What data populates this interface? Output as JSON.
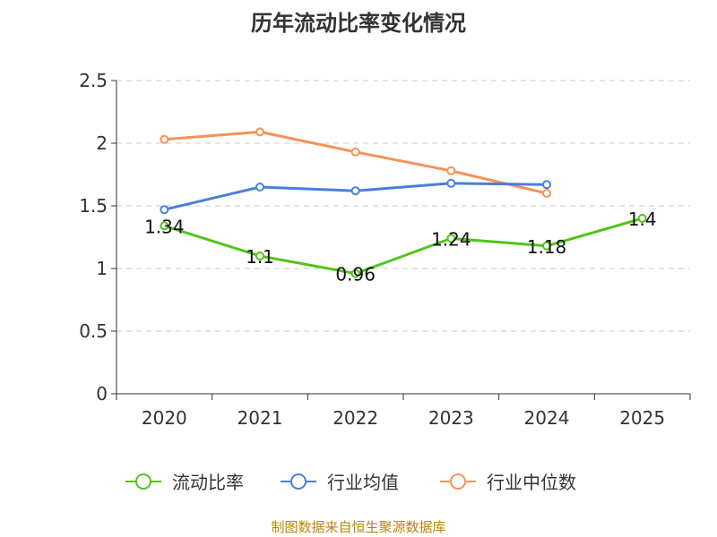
{
  "title": "历年流动比率变化情况",
  "source": "制图数据来自恒生聚源数据库",
  "chart_data": {
    "type": "line",
    "title": "历年流动比率变化情况",
    "categories": [
      "2020",
      "2021",
      "2022",
      "2023",
      "2024",
      "2025"
    ],
    "ylim": [
      0,
      2.5
    ],
    "yticks": [
      "0",
      "0.5",
      "1",
      "1.5",
      "2",
      "2.5"
    ],
    "grid": true,
    "legend_position": "bottom",
    "series": [
      {
        "name": "流动比率",
        "color": "#52c41a",
        "values": [
          1.34,
          1.1,
          0.96,
          1.24,
          1.18,
          1.4
        ],
        "labels": [
          "1.34",
          "1.1",
          "0.96",
          "1.24",
          "1.18",
          "1.4"
        ]
      },
      {
        "name": "行业均值",
        "color": "#4a7fdc",
        "values": [
          1.47,
          1.65,
          1.62,
          1.68,
          1.67,
          null
        ]
      },
      {
        "name": "行业中位数",
        "color": "#f5925a",
        "values": [
          2.03,
          2.09,
          1.93,
          1.78,
          1.6,
          null
        ]
      }
    ]
  }
}
